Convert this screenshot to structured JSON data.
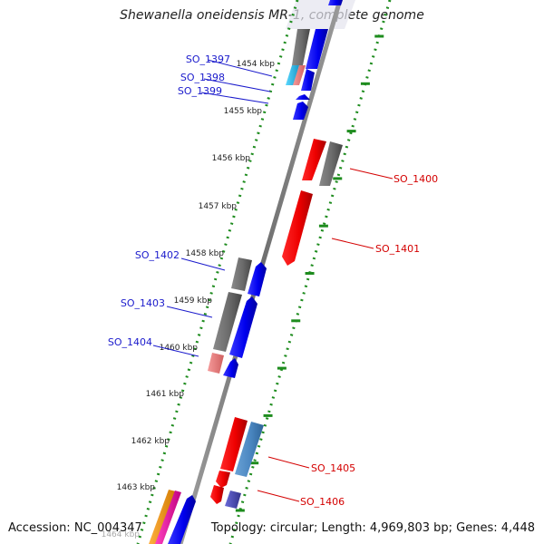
{
  "title": "Shewanella oneidensis MR-1, complete genome",
  "accession_label": "Accession:",
  "accession": "NC_004347",
  "summary": "Topology: circular; Length: 4,969,803 bp; Genes: 4,448",
  "colors": {
    "backbone": "#808080",
    "label_blue": "#1a1acc",
    "label_red": "#d40000",
    "tick_green": "#1e8c1e"
  },
  "ticks": [
    {
      "label": "1454 kbp",
      "faded": false
    },
    {
      "label": "1455 kbp",
      "faded": false
    },
    {
      "label": "1456 kbp",
      "faded": false
    },
    {
      "label": "1457 kbp",
      "faded": false
    },
    {
      "label": "1458 kbp",
      "faded": false
    },
    {
      "label": "1459 kbp",
      "faded": false
    },
    {
      "label": "1460 kbp",
      "faded": false
    },
    {
      "label": "1461 kbp",
      "faded": false
    },
    {
      "label": "1462 kbp",
      "faded": false
    },
    {
      "label": "1463 kbp",
      "faded": false
    },
    {
      "label": "1464 kbp",
      "faded": true
    }
  ],
  "gene_labels": [
    {
      "name": "SO_1397",
      "strand": "reverse"
    },
    {
      "name": "SO_1398",
      "strand": "reverse"
    },
    {
      "name": "SO_1399",
      "strand": "reverse"
    },
    {
      "name": "SO_1400",
      "strand": "forward"
    },
    {
      "name": "SO_1401",
      "strand": "forward"
    },
    {
      "name": "SO_1402",
      "strand": "reverse"
    },
    {
      "name": "SO_1403",
      "strand": "reverse"
    },
    {
      "name": "SO_1404",
      "strand": "reverse"
    },
    {
      "name": "SO_1405",
      "strand": "forward"
    },
    {
      "name": "SO_1406",
      "strand": "forward"
    }
  ]
}
